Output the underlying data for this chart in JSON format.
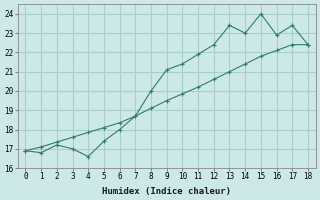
{
  "xlabel": "Humidex (Indice chaleur)",
  "ylabel": "",
  "bg_color": "#cce8e8",
  "grid_color": "#aacece",
  "line_color": "#2e7d6e",
  "xlim": [
    -0.5,
    18.5
  ],
  "ylim": [
    16,
    24.5
  ],
  "xticks": [
    0,
    1,
    2,
    3,
    4,
    5,
    6,
    7,
    8,
    9,
    10,
    11,
    12,
    13,
    14,
    15,
    16,
    17,
    18
  ],
  "yticks": [
    16,
    17,
    18,
    19,
    20,
    21,
    22,
    23,
    24
  ],
  "line1_x": [
    0,
    1,
    2,
    3,
    4,
    5,
    6,
    7,
    8,
    9,
    10,
    11,
    12,
    13,
    14,
    15,
    16,
    17,
    18
  ],
  "line1_y": [
    16.9,
    16.8,
    17.2,
    17.0,
    16.6,
    17.4,
    18.0,
    18.7,
    20.0,
    21.1,
    21.4,
    21.9,
    22.4,
    23.4,
    23.0,
    24.0,
    22.9,
    23.4,
    22.4
  ],
  "line2_x": [
    0,
    1,
    2,
    3,
    4,
    5,
    6,
    7,
    8,
    9,
    10,
    11,
    12,
    13,
    14,
    15,
    16,
    17,
    18
  ],
  "line2_y": [
    16.9,
    17.1,
    17.35,
    17.6,
    17.85,
    18.1,
    18.35,
    18.7,
    19.1,
    19.5,
    19.85,
    20.2,
    20.6,
    21.0,
    21.4,
    21.8,
    22.1,
    22.4,
    22.4
  ]
}
